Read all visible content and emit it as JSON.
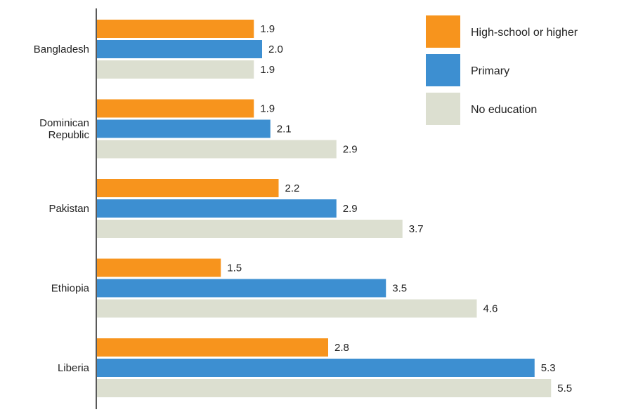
{
  "chart_data": {
    "type": "bar",
    "orientation": "horizontal",
    "categories": [
      [
        "Bangladesh"
      ],
      [
        "Dominican",
        "Republic"
      ],
      [
        "Pakistan"
      ],
      [
        "Ethiopia"
      ],
      [
        "Liberia"
      ]
    ],
    "series": [
      {
        "name": "High-school or higher",
        "color": "#f7941d",
        "values": [
          1.9,
          1.9,
          2.2,
          1.5,
          2.8
        ],
        "labels": [
          "1.9",
          "1.9",
          "2.2",
          "1.5",
          "2.8"
        ]
      },
      {
        "name": "Primary",
        "color": "#3d8fd1",
        "values": [
          2.0,
          2.1,
          2.9,
          3.5,
          5.3
        ],
        "labels": [
          "2.0",
          "2.1",
          "2.9",
          "3.5",
          "5.3"
        ]
      },
      {
        "name": "No education",
        "color": "#dcdfd0",
        "values": [
          1.9,
          2.9,
          3.7,
          4.6,
          5.5
        ],
        "labels": [
          "1.9",
          "2.9",
          "3.7",
          "4.6",
          "5.5"
        ]
      }
    ],
    "xlim": [
      0,
      6.0
    ],
    "grid": false,
    "legend_position": "top-right",
    "title": "",
    "xlabel": "",
    "ylabel": ""
  }
}
